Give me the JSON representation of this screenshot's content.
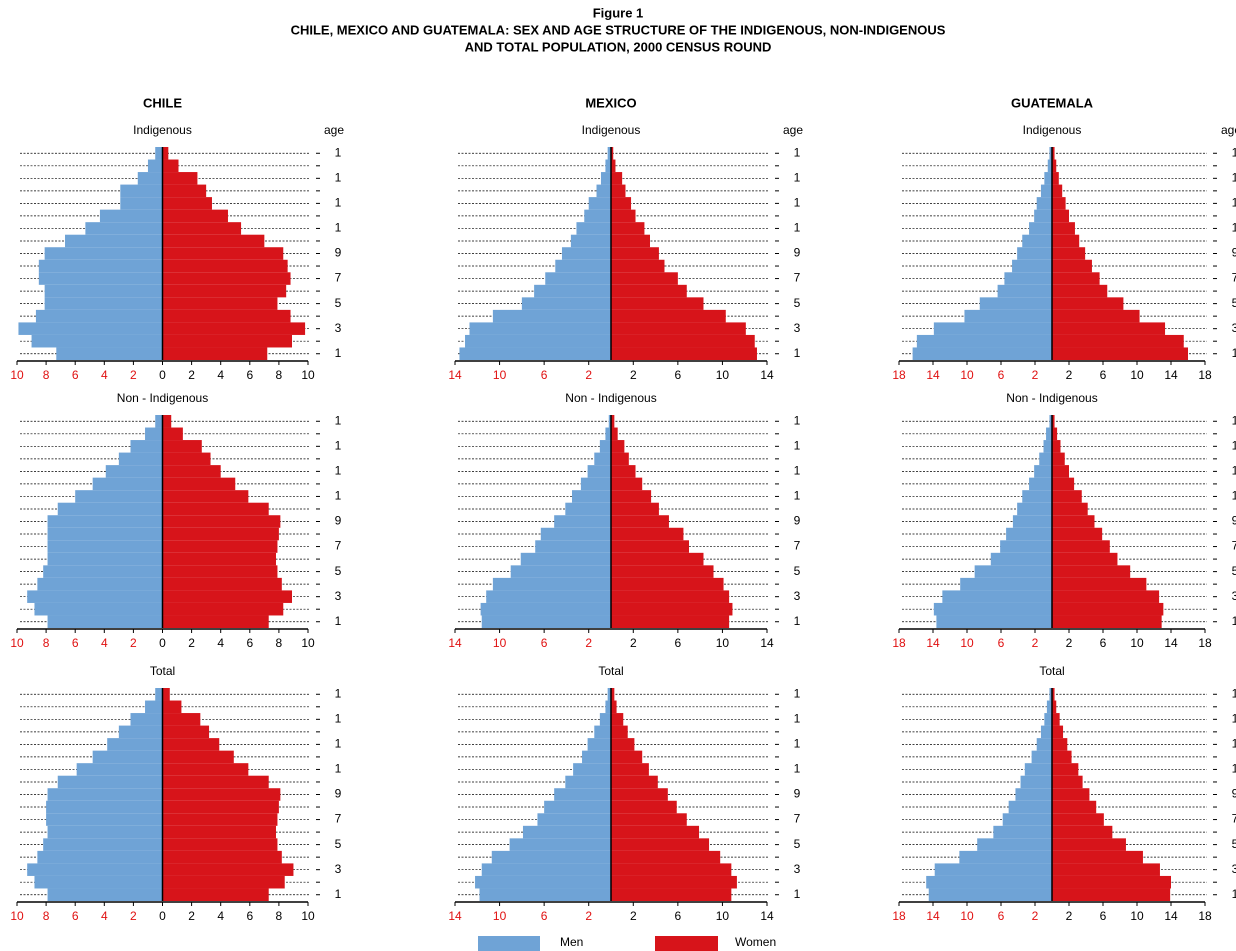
{
  "title": "Figure 1",
  "subtitle": [
    "CHILE, MEXICO AND GUATEMALA:  SEX AND AGE STRUCTURE OF THE INDIGENOUS, NON-INDIGENOUS",
    "AND TOTAL POPULATION, 2000 CENSUS ROUND"
  ],
  "chart_data": [
    {
      "type": "pyramid",
      "title": "CHILE",
      "subtitle": "Indigenous",
      "y_label": "age",
      "categories": [
        "1",
        null,
        "3",
        null,
        "5",
        null,
        "7",
        null,
        "9",
        null,
        "1",
        null,
        "1",
        null,
        "1",
        null,
        "1"
      ],
      "series": [
        {
          "name": "Men",
          "color": "#6fa3d6",
          "axis": "x2",
          "values": [
            7.3,
            9.0,
            9.9,
            8.7,
            8.1,
            8.1,
            8.5,
            8.5,
            8.1,
            6.7,
            5.3,
            4.3,
            2.9,
            2.9,
            1.7,
            1.0,
            0.5
          ]
        },
        {
          "name": "Women",
          "color": "#d7141a",
          "values": [
            7.2,
            8.9,
            9.8,
            8.8,
            7.9,
            8.5,
            8.8,
            8.6,
            8.3,
            7.0,
            5.4,
            4.5,
            3.4,
            3.0,
            2.4,
            1.1,
            0.4
          ]
        }
      ],
      "xlim": [
        0,
        10
      ],
      "xticks": [
        0,
        2,
        4,
        6,
        8,
        10
      ],
      "x2lim": [
        0,
        10
      ],
      "x2ticks": [
        10,
        8,
        6,
        4,
        2
      ],
      "x2tick_color": "#e01010"
    },
    {
      "type": "pyramid",
      "title": "MEXICO",
      "subtitle": "Indigenous",
      "y_label": "age",
      "categories": [
        "1",
        null,
        "3",
        null,
        "5",
        null,
        "7",
        null,
        "9",
        null,
        "1",
        null,
        "1",
        null,
        "1",
        null,
        "1"
      ],
      "series": [
        {
          "color": "#6fa3d6",
          "axis": "x2",
          "values": [
            13.6,
            13.1,
            12.7,
            10.6,
            8.0,
            6.9,
            5.9,
            5.0,
            4.4,
            3.6,
            3.1,
            2.4,
            2.0,
            1.3,
            0.9,
            0.5,
            0.3
          ]
        },
        {
          "color": "#d7141a",
          "values": [
            13.1,
            12.9,
            12.1,
            10.3,
            8.3,
            6.8,
            6.0,
            4.8,
            4.3,
            3.5,
            3.0,
            2.2,
            1.8,
            1.3,
            1.0,
            0.4,
            0.2
          ]
        }
      ],
      "xlim": [
        0,
        14
      ],
      "xticks": [
        2,
        6,
        10,
        14
      ],
      "x2lim": [
        0,
        14
      ],
      "x2ticks": [
        14,
        10,
        6,
        2
      ],
      "x2tick_color": "#e01010"
    },
    {
      "type": "pyramid",
      "title": "GUATEMALA",
      "subtitle": "Indigenous",
      "y_label": "age",
      "categories": [
        "1",
        null,
        "3",
        null,
        "5",
        null,
        "7",
        null,
        "9",
        null,
        "1",
        null,
        "1",
        null,
        "1",
        null,
        "1"
      ],
      "series": [
        {
          "color": "#6fa3d6",
          "axis": "x2",
          "values": [
            16.4,
            15.9,
            13.9,
            10.3,
            8.5,
            6.4,
            5.6,
            4.7,
            4.1,
            3.5,
            2.7,
            2.1,
            1.8,
            1.3,
            0.9,
            0.5,
            0.3
          ]
        },
        {
          "color": "#d7141a",
          "values": [
            16.0,
            15.5,
            13.3,
            10.3,
            8.4,
            6.5,
            5.6,
            4.7,
            3.9,
            3.2,
            2.7,
            2.0,
            1.6,
            1.2,
            0.8,
            0.5,
            0.3
          ]
        }
      ],
      "xlim": [
        0,
        18
      ],
      "xticks": [
        2,
        6,
        10,
        14,
        18
      ],
      "x2lim": [
        0,
        18
      ],
      "x2ticks": [
        18,
        14,
        10,
        6,
        2
      ],
      "x2tick_color": "#e01010"
    },
    {
      "type": "pyramid",
      "subtitle": "Non - Indigenous",
      "categories": [
        "1",
        null,
        "3",
        null,
        "5",
        null,
        "7",
        null,
        "9",
        null,
        "1",
        null,
        "1",
        null,
        "1",
        null,
        "1"
      ],
      "series": [
        {
          "color": "#6fa3d6",
          "axis": "x2",
          "values": [
            7.9,
            8.8,
            9.3,
            8.6,
            8.2,
            7.9,
            7.9,
            7.9,
            7.9,
            7.2,
            6.0,
            4.8,
            3.9,
            3.0,
            2.2,
            1.2,
            0.5
          ]
        },
        {
          "color": "#d7141a",
          "values": [
            7.3,
            8.3,
            8.9,
            8.2,
            7.9,
            7.8,
            7.9,
            8.0,
            8.1,
            7.3,
            5.9,
            5.0,
            4.0,
            3.3,
            2.7,
            1.4,
            0.6
          ]
        }
      ],
      "xlim": [
        0,
        10
      ],
      "xticks": [
        0,
        2,
        4,
        6,
        8,
        10
      ],
      "x2lim": [
        0,
        10
      ],
      "x2ticks": [
        10,
        8,
        6,
        4,
        2
      ],
      "x2tick_color": "#e01010"
    },
    {
      "type": "pyramid",
      "subtitle": "Non - Indigenous",
      "categories": [
        "1",
        null,
        "3",
        null,
        "5",
        null,
        "7",
        null,
        "9",
        null,
        "1",
        null,
        "1",
        null,
        "1",
        null,
        "1"
      ],
      "series": [
        {
          "color": "#6fa3d6",
          "axis": "x2",
          "values": [
            11.6,
            11.7,
            11.2,
            10.6,
            9.0,
            8.1,
            6.8,
            6.3,
            5.1,
            4.1,
            3.5,
            2.7,
            2.1,
            1.5,
            1.0,
            0.5,
            0.2
          ]
        },
        {
          "color": "#d7141a",
          "values": [
            10.6,
            10.9,
            10.6,
            10.1,
            9.2,
            8.3,
            7.0,
            6.5,
            5.2,
            4.3,
            3.6,
            2.8,
            2.2,
            1.6,
            1.2,
            0.6,
            0.3
          ]
        }
      ],
      "xlim": [
        0,
        14
      ],
      "xticks": [
        2,
        6,
        10,
        14
      ],
      "x2lim": [
        0,
        14
      ],
      "x2ticks": [
        14,
        10,
        6,
        2
      ],
      "x2tick_color": "#e01010"
    },
    {
      "type": "pyramid",
      "subtitle": "Non - Indigenous",
      "categories": [
        "1",
        null,
        "3",
        null,
        "5",
        null,
        "7",
        null,
        "9",
        null,
        "1",
        null,
        "1",
        null,
        "1",
        null,
        "1"
      ],
      "series": [
        {
          "color": "#6fa3d6",
          "axis": "x2",
          "values": [
            13.6,
            13.9,
            12.9,
            10.8,
            9.1,
            7.2,
            6.1,
            5.4,
            4.6,
            4.1,
            3.5,
            2.7,
            2.1,
            1.5,
            1.0,
            0.7,
            0.3
          ]
        },
        {
          "color": "#d7141a",
          "values": [
            12.9,
            13.1,
            12.6,
            11.1,
            9.2,
            7.7,
            6.8,
            5.9,
            5.0,
            4.2,
            3.5,
            2.6,
            2.0,
            1.5,
            1.0,
            0.6,
            0.3
          ]
        }
      ],
      "xlim": [
        0,
        18
      ],
      "xticks": [
        2,
        6,
        10,
        14,
        18
      ],
      "x2lim": [
        0,
        18
      ],
      "x2ticks": [
        18,
        14,
        10,
        6,
        2
      ],
      "x2tick_color": "#e01010"
    },
    {
      "type": "pyramid",
      "subtitle": "Total",
      "categories": [
        "1",
        null,
        "3",
        null,
        "5",
        null,
        "7",
        null,
        "9",
        null,
        "1",
        null,
        "1",
        null,
        "1",
        null,
        "1"
      ],
      "series": [
        {
          "color": "#6fa3d6",
          "axis": "x2",
          "values": [
            7.9,
            8.8,
            9.3,
            8.6,
            8.2,
            7.9,
            8.0,
            8.0,
            7.9,
            7.2,
            5.9,
            4.8,
            3.8,
            3.0,
            2.2,
            1.2,
            0.5
          ]
        },
        {
          "color": "#d7141a",
          "values": [
            7.3,
            8.4,
            9.0,
            8.2,
            7.9,
            7.8,
            7.9,
            8.0,
            8.1,
            7.3,
            5.9,
            4.9,
            3.9,
            3.2,
            2.6,
            1.3,
            0.5
          ]
        }
      ],
      "xlim": [
        0,
        10
      ],
      "xticks": [
        0,
        2,
        4,
        6,
        8,
        10
      ],
      "x2lim": [
        0,
        10
      ],
      "x2ticks": [
        10,
        8,
        6,
        4,
        2
      ],
      "x2tick_color": "#e01010"
    },
    {
      "type": "pyramid",
      "subtitle": "Total",
      "categories": [
        "1",
        null,
        "3",
        null,
        "5",
        null,
        "7",
        null,
        "9",
        null,
        "1",
        null,
        "1",
        null,
        "1",
        null,
        "1"
      ],
      "series": [
        {
          "color": "#6fa3d6",
          "axis": "x2",
          "values": [
            11.8,
            12.2,
            11.6,
            10.7,
            9.1,
            7.9,
            6.6,
            6.0,
            5.1,
            4.1,
            3.4,
            2.6,
            2.1,
            1.5,
            1.0,
            0.5,
            0.3
          ]
        },
        {
          "color": "#d7141a",
          "values": [
            10.8,
            11.3,
            10.8,
            9.8,
            8.8,
            7.9,
            6.8,
            5.9,
            5.1,
            4.2,
            3.4,
            2.8,
            2.1,
            1.5,
            1.1,
            0.5,
            0.3
          ]
        }
      ],
      "xlim": [
        0,
        14
      ],
      "xticks": [
        2,
        6,
        10,
        14
      ],
      "x2lim": [
        0,
        14
      ],
      "x2ticks": [
        14,
        10,
        6,
        2
      ],
      "x2tick_color": "#e01010"
    },
    {
      "type": "pyramid",
      "subtitle": "Total",
      "categories": [
        "1",
        null,
        "3",
        null,
        "5",
        null,
        "7",
        null,
        "9",
        null,
        "1",
        null,
        "1",
        null,
        "1",
        null,
        "1"
      ],
      "series": [
        {
          "color": "#6fa3d6",
          "axis": "x2",
          "values": [
            14.5,
            14.8,
            13.8,
            10.9,
            8.8,
            6.9,
            5.8,
            5.1,
            4.3,
            3.7,
            3.2,
            2.4,
            1.8,
            1.3,
            0.9,
            0.6,
            0.3
          ]
        },
        {
          "color": "#d7141a",
          "values": [
            13.9,
            14.0,
            12.7,
            10.7,
            8.7,
            7.1,
            6.1,
            5.2,
            4.4,
            3.6,
            3.1,
            2.3,
            1.8,
            1.3,
            0.9,
            0.5,
            0.3
          ]
        }
      ],
      "xlim": [
        0,
        18
      ],
      "xticks": [
        2,
        6,
        10,
        14,
        18
      ],
      "x2lim": [
        0,
        18
      ],
      "x2ticks": [
        18,
        14,
        10,
        6,
        2
      ],
      "x2tick_color": "#e01010"
    }
  ]
}
